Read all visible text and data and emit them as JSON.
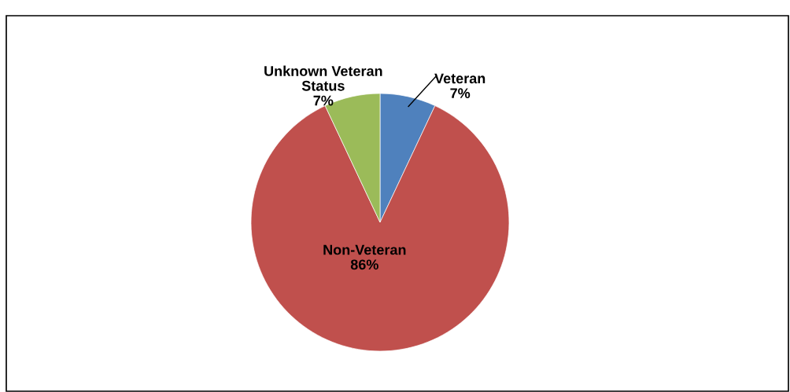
{
  "chart_data": {
    "type": "pie",
    "categories": [
      "Veteran",
      "Non-Veteran",
      "Unknown Veteran Status"
    ],
    "values": [
      7,
      86,
      7
    ],
    "colors": [
      "#4f81bd",
      "#c0504d",
      "#9bbb59"
    ],
    "value_labels": [
      "7%",
      "86%",
      "7%"
    ],
    "legend": false
  }
}
